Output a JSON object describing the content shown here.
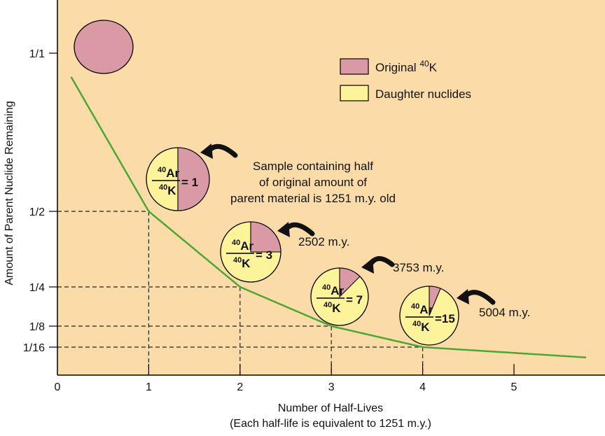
{
  "chart_data": {
    "type": "line",
    "title": "",
    "xlabel": "Number of Half-Lives",
    "xlabel_note": "(Each half-life is equivalent to 1251 m.y.)",
    "ylabel": "Amount of Parent Nuclide Remaining",
    "x_ticks": [
      "0",
      "1",
      "2",
      "3",
      "4",
      "5"
    ],
    "y_ticks": [
      {
        "label": "1/1",
        "value": 1
      },
      {
        "label": "1/2",
        "value": 0.5
      },
      {
        "label": "1/4",
        "value": 0.25
      },
      {
        "label": "1/8",
        "value": 0.125
      },
      {
        "label": "1/16",
        "value": 0.0625
      }
    ],
    "xlim": [
      0,
      5.8
    ],
    "series": [
      {
        "name": "",
        "color": "#4aa832",
        "x_start": 0.15,
        "x_end": 5.8,
        "function": "(1/2)^x"
      }
    ],
    "reference_points": [
      {
        "x": 1,
        "y": 0.5
      },
      {
        "x": 2,
        "y": 0.25
      },
      {
        "x": 3,
        "y": 0.125
      },
      {
        "x": 4,
        "y": 0.0625
      }
    ],
    "legend": {
      "placement": "top-right",
      "items": [
        {
          "label_pre": "Original ",
          "sup": "40",
          "label_post": "K",
          "color": "#d99aa6"
        },
        {
          "label_pre": "Daughter nuclides",
          "sup": "",
          "label_post": "",
          "color": "#fdf39a"
        }
      ]
    },
    "pies": [
      {
        "parent_fraction": 1.0,
        "ratio": ""
      },
      {
        "parent_fraction": 0.5,
        "ratio": "1",
        "callout_lines": [
          "Sample containing half",
          "of original amount of",
          "parent material is 1251 m.y. old"
        ]
      },
      {
        "parent_fraction": 0.25,
        "ratio": "3",
        "callout_lines": [
          "2502 m.y."
        ]
      },
      {
        "parent_fraction": 0.125,
        "ratio": "7",
        "callout_lines": [
          "3753 m.y."
        ]
      },
      {
        "parent_fraction": 0.0625,
        "ratio": "15",
        "callout_lines": [
          "5004 m.y."
        ]
      }
    ],
    "ratio_label": {
      "num_sup": "40",
      "num": "Ar",
      "den_sup": "40",
      "den": "K"
    },
    "colors": {
      "background": "#fbdca8",
      "parent": "#d99aa6",
      "daughter": "#fdf39a",
      "curve": "#4aa832"
    }
  }
}
